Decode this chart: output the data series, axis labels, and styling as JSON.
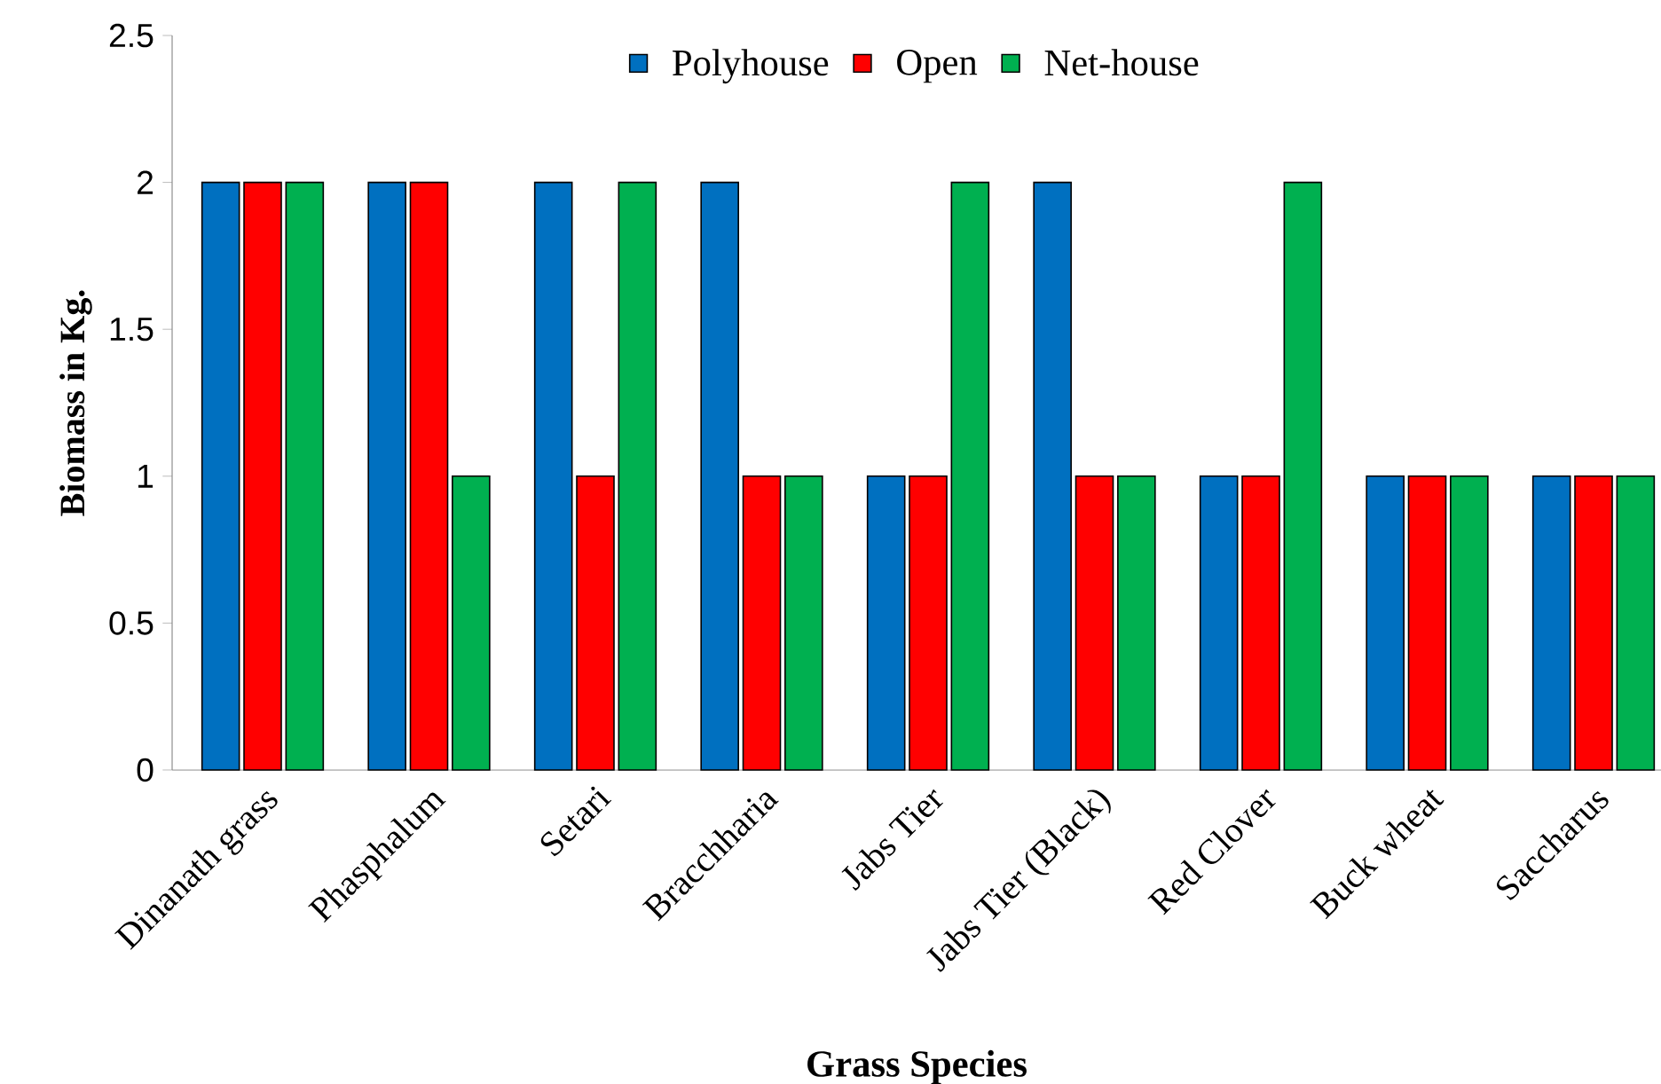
{
  "chart_data": {
    "type": "bar",
    "xlabel": "Grass Species",
    "ylabel": "Biomass in Kg.",
    "categories": [
      "Dinanath grass",
      "Phasphalum",
      "Setari",
      "Bracchharia",
      "Jabs Tier",
      "Jabs Tier (Black)",
      "Red Clover",
      "Buck wheat",
      "Saccharus"
    ],
    "series": [
      {
        "name": "Polyhouse",
        "color": "#0070c0",
        "values": [
          2,
          2,
          2,
          2,
          1,
          2,
          1,
          1,
          1
        ]
      },
      {
        "name": "Open",
        "color": "#ff0000",
        "values": [
          2,
          2,
          1,
          1,
          1,
          1,
          1,
          1,
          1
        ]
      },
      {
        "name": "Net-house",
        "color": "#00b050",
        "values": [
          2,
          1,
          2,
          1,
          2,
          1,
          2,
          1,
          1
        ]
      }
    ],
    "ylim": [
      0,
      2.5
    ],
    "yticks": [
      0,
      0.5,
      1,
      1.5,
      2,
      2.5
    ],
    "grid": false,
    "legend": "top"
  }
}
